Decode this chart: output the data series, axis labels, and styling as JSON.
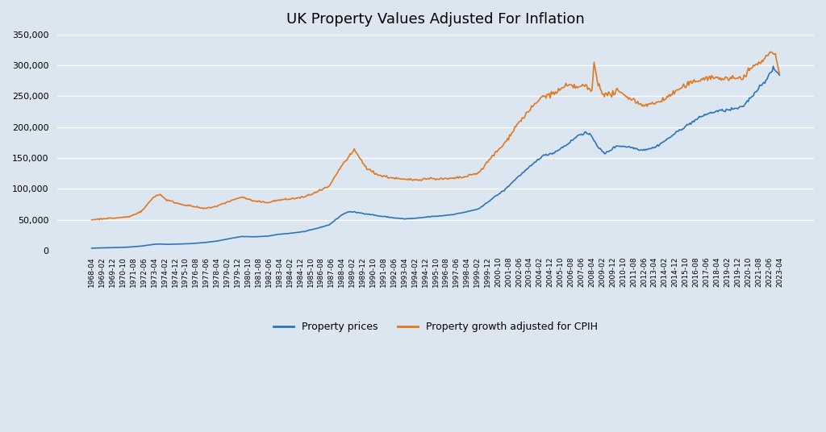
{
  "title": "UK Property Values Adjusted For Inflation",
  "bg_color": "#dce6f1",
  "plot_bg_color": "#dce6f1",
  "line_color_prices": "#2e75b6",
  "line_color_cpih": "#e07820",
  "legend_labels": [
    "Property prices",
    "Property growth adjusted for CPIH"
  ],
  "ylim": [
    0,
    350000
  ],
  "yticks": [
    0,
    50000,
    100000,
    150000,
    200000,
    250000,
    300000,
    350000
  ],
  "label_every_n": 10,
  "start_year": 1968,
  "start_month": 4
}
